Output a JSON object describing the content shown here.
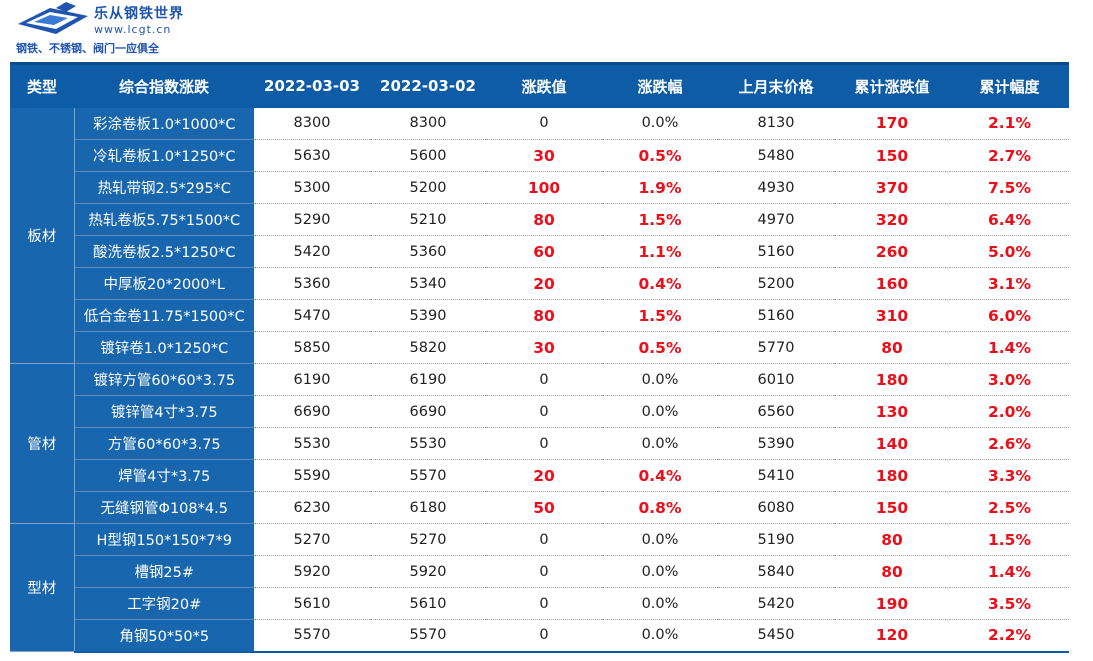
{
  "logo": {
    "title": "乐从钢铁世界",
    "url": "www.lcgt.cn",
    "slogan": "钢铁、不锈钢、阀门一应俱全"
  },
  "table": {
    "headers": [
      "类型",
      "综合指数涨跌",
      "2022-03-03",
      "2022-03-02",
      "涨跌值",
      "涨跌幅",
      "上月末价格",
      "累计涨跌值",
      "累计幅度"
    ],
    "groups": [
      {
        "category": "板材",
        "rows": [
          {
            "name": "彩涂卷板1.0*1000*C",
            "p1": "8300",
            "p2": "8300",
            "chg": "0",
            "pct": "0.0%",
            "last": "8130",
            "cum": "170",
            "cumpct": "2.1%"
          },
          {
            "name": "冷轧卷板1.0*1250*C",
            "p1": "5630",
            "p2": "5600",
            "chg": "30",
            "pct": "0.5%",
            "last": "5480",
            "cum": "150",
            "cumpct": "2.7%"
          },
          {
            "name": "热轧带钢2.5*295*C",
            "p1": "5300",
            "p2": "5200",
            "chg": "100",
            "pct": "1.9%",
            "last": "4930",
            "cum": "370",
            "cumpct": "7.5%"
          },
          {
            "name": "热轧卷板5.75*1500*C",
            "p1": "5290",
            "p2": "5210",
            "chg": "80",
            "pct": "1.5%",
            "last": "4970",
            "cum": "320",
            "cumpct": "6.4%"
          },
          {
            "name": "酸洗卷板2.5*1250*C",
            "p1": "5420",
            "p2": "5360",
            "chg": "60",
            "pct": "1.1%",
            "last": "5160",
            "cum": "260",
            "cumpct": "5.0%"
          },
          {
            "name": "中厚板20*2000*L",
            "p1": "5360",
            "p2": "5340",
            "chg": "20",
            "pct": "0.4%",
            "last": "5200",
            "cum": "160",
            "cumpct": "3.1%"
          },
          {
            "name": "低合金卷11.75*1500*C",
            "p1": "5470",
            "p2": "5390",
            "chg": "80",
            "pct": "1.5%",
            "last": "5160",
            "cum": "310",
            "cumpct": "6.0%"
          },
          {
            "name": "镀锌卷1.0*1250*C",
            "p1": "5850",
            "p2": "5820",
            "chg": "30",
            "pct": "0.5%",
            "last": "5770",
            "cum": "80",
            "cumpct": "1.4%"
          }
        ]
      },
      {
        "category": "管材",
        "rows": [
          {
            "name": "镀锌方管60*60*3.75",
            "p1": "6190",
            "p2": "6190",
            "chg": "0",
            "pct": "0.0%",
            "last": "6010",
            "cum": "180",
            "cumpct": "3.0%"
          },
          {
            "name": "镀锌管4寸*3.75",
            "p1": "6690",
            "p2": "6690",
            "chg": "0",
            "pct": "0.0%",
            "last": "6560",
            "cum": "130",
            "cumpct": "2.0%"
          },
          {
            "name": "方管60*60*3.75",
            "p1": "5530",
            "p2": "5530",
            "chg": "0",
            "pct": "0.0%",
            "last": "5390",
            "cum": "140",
            "cumpct": "2.6%"
          },
          {
            "name": "焊管4寸*3.75",
            "p1": "5590",
            "p2": "5570",
            "chg": "20",
            "pct": "0.4%",
            "last": "5410",
            "cum": "180",
            "cumpct": "3.3%"
          },
          {
            "name": "无缝钢管Φ108*4.5",
            "p1": "6230",
            "p2": "6180",
            "chg": "50",
            "pct": "0.8%",
            "last": "6080",
            "cum": "150",
            "cumpct": "2.5%"
          }
        ]
      },
      {
        "category": "型材",
        "rows": [
          {
            "name": "H型钢150*150*7*9",
            "p1": "5270",
            "p2": "5270",
            "chg": "0",
            "pct": "0.0%",
            "last": "5190",
            "cum": "80",
            "cumpct": "1.5%"
          },
          {
            "name": "槽钢25#",
            "p1": "5920",
            "p2": "5920",
            "chg": "0",
            "pct": "0.0%",
            "last": "5840",
            "cum": "80",
            "cumpct": "1.4%"
          },
          {
            "name": "工字钢20#",
            "p1": "5610",
            "p2": "5610",
            "chg": "0",
            "pct": "0.0%",
            "last": "5420",
            "cum": "190",
            "cumpct": "3.5%"
          },
          {
            "name": "角钢50*50*5",
            "p1": "5570",
            "p2": "5570",
            "chg": "0",
            "pct": "0.0%",
            "last": "5450",
            "cum": "120",
            "cumpct": "2.2%"
          }
        ]
      }
    ]
  }
}
